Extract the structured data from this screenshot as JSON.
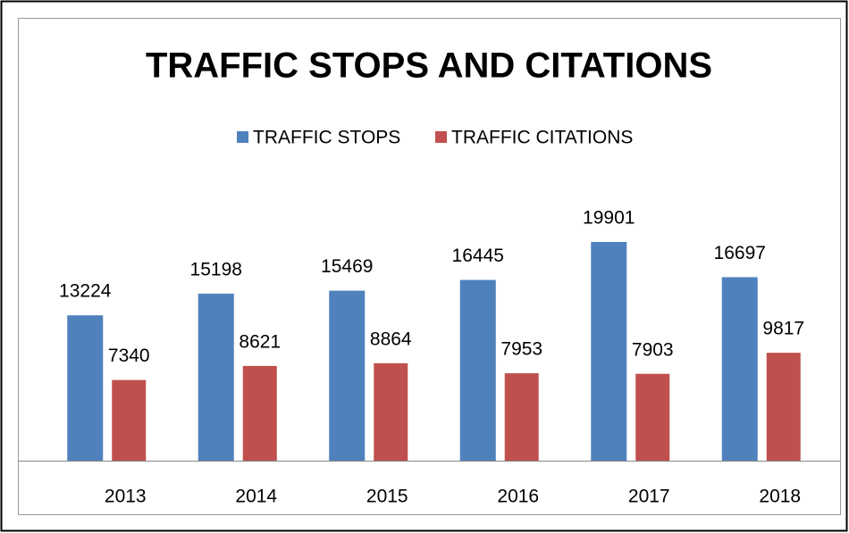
{
  "chart_data": {
    "type": "bar",
    "title": "TRAFFIC STOPS AND CITATIONS",
    "categories": [
      "2013",
      "2014",
      "2015",
      "2016",
      "2017",
      "2018"
    ],
    "series": [
      {
        "name": "TRAFFIC STOPS",
        "color": "#4f81bd",
        "values": [
          13224,
          15198,
          15469,
          16445,
          19901,
          16697
        ]
      },
      {
        "name": "TRAFFIC CITATIONS",
        "color": "#c0504d",
        "values": [
          7340,
          8621,
          8864,
          7953,
          7903,
          9817
        ]
      }
    ],
    "legend": "top"
  }
}
